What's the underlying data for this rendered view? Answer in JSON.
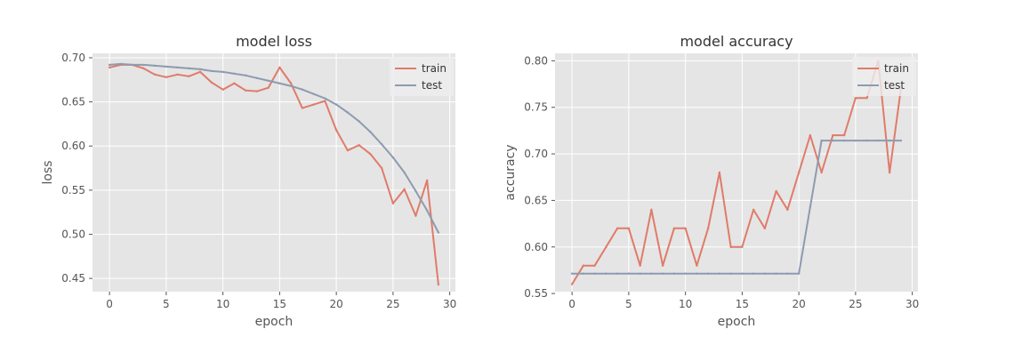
{
  "colors": {
    "plot_bg": "#e5e5e5",
    "grid": "#ffffff",
    "train": "#e07b6a",
    "test": "#8d9bb0",
    "text": "#555555",
    "title": "#333333",
    "legend_bg": "#eeeeee"
  },
  "chart_data": [
    {
      "type": "line",
      "title": "model loss",
      "xlabel": "epoch",
      "ylabel": "loss",
      "xlim": [
        -1.5,
        30.5
      ],
      "ylim": [
        0.435,
        0.705
      ],
      "xticks": [
        0,
        5,
        10,
        15,
        20,
        25,
        30
      ],
      "yticks": [
        0.45,
        0.5,
        0.55,
        0.6,
        0.65,
        0.7
      ],
      "ytick_labels": [
        "0.45",
        "0.50",
        "0.55",
        "0.60",
        "0.65",
        "0.70"
      ],
      "grid": true,
      "legend": "top-right",
      "x": [
        0,
        1,
        2,
        3,
        4,
        5,
        6,
        7,
        8,
        9,
        10,
        11,
        12,
        13,
        14,
        15,
        16,
        17,
        18,
        19,
        20,
        21,
        22,
        23,
        24,
        25,
        26,
        27,
        28,
        29
      ],
      "series": [
        {
          "name": "train",
          "color": "#e07b6a",
          "values": [
            0.689,
            0.692,
            0.692,
            0.688,
            0.681,
            0.678,
            0.681,
            0.679,
            0.684,
            0.672,
            0.664,
            0.671,
            0.663,
            0.662,
            0.666,
            0.689,
            0.671,
            0.643,
            0.647,
            0.651,
            0.618,
            0.595,
            0.601,
            0.591,
            0.575,
            0.535,
            0.551,
            0.521,
            0.561,
            0.443
          ]
        },
        {
          "name": "test",
          "color": "#8d9bb0",
          "values": [
            0.692,
            0.693,
            0.692,
            0.692,
            0.691,
            0.69,
            0.689,
            0.688,
            0.687,
            0.685,
            0.684,
            0.682,
            0.68,
            0.677,
            0.674,
            0.671,
            0.668,
            0.664,
            0.659,
            0.654,
            0.647,
            0.638,
            0.628,
            0.616,
            0.602,
            0.587,
            0.57,
            0.549,
            0.527,
            0.502
          ]
        }
      ]
    },
    {
      "type": "line",
      "title": "model accuracy",
      "xlabel": "epoch",
      "ylabel": "accuracy",
      "xlim": [
        -1.5,
        30.5
      ],
      "ylim": [
        0.552,
        0.808
      ],
      "xticks": [
        0,
        5,
        10,
        15,
        20,
        25,
        30
      ],
      "yticks": [
        0.55,
        0.6,
        0.65,
        0.7,
        0.75,
        0.8
      ],
      "ytick_labels": [
        "0.55",
        "0.60",
        "0.65",
        "0.70",
        "0.75",
        "0.80"
      ],
      "grid": true,
      "legend": "top-right",
      "x": [
        0,
        1,
        2,
        3,
        4,
        5,
        6,
        7,
        8,
        9,
        10,
        11,
        12,
        13,
        14,
        15,
        16,
        17,
        18,
        19,
        20,
        21,
        22,
        23,
        24,
        25,
        26,
        27,
        28,
        29
      ],
      "series": [
        {
          "name": "train",
          "color": "#e07b6a",
          "values": [
            0.56,
            0.58,
            0.58,
            0.6,
            0.62,
            0.62,
            0.58,
            0.64,
            0.58,
            0.62,
            0.62,
            0.58,
            0.62,
            0.68,
            0.6,
            0.6,
            0.64,
            0.62,
            0.66,
            0.64,
            0.68,
            0.72,
            0.68,
            0.72,
            0.72,
            0.76,
            0.76,
            0.8,
            0.68,
            0.77
          ]
        },
        {
          "name": "test",
          "color": "#8d9bb0",
          "values": [
            0.5714,
            0.5714,
            0.5714,
            0.5714,
            0.5714,
            0.5714,
            0.5714,
            0.5714,
            0.5714,
            0.5714,
            0.5714,
            0.5714,
            0.5714,
            0.5714,
            0.5714,
            0.5714,
            0.5714,
            0.5714,
            0.5714,
            0.5714,
            0.5714,
            0.6429,
            0.7143,
            0.7143,
            0.7143,
            0.7143,
            0.7143,
            0.7143,
            0.7143,
            0.7143
          ]
        }
      ]
    }
  ]
}
